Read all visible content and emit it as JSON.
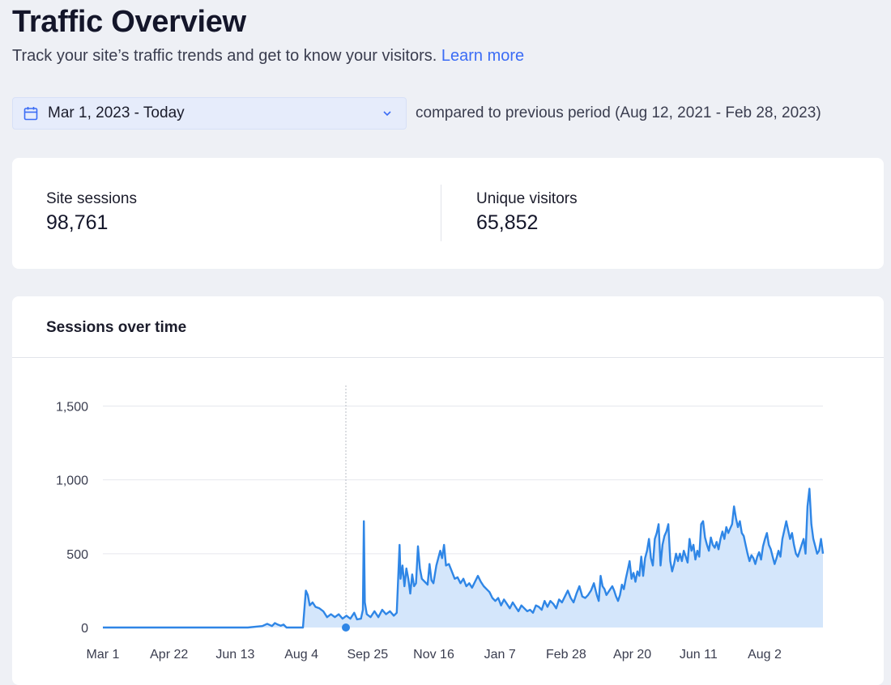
{
  "header": {
    "title": "Traffic Overview",
    "subtitle": "Track your site’s traffic trends and get to know your visitors.",
    "learn_more": "Learn more"
  },
  "filters": {
    "date_range": "Mar 1, 2023 - Today",
    "compare_text": "compared to previous period (Aug 12, 2021 - Feb 28, 2023)"
  },
  "stats": [
    {
      "label": "Site sessions",
      "value": "98,761"
    },
    {
      "label": "Unique visitors",
      "value": "65,852"
    }
  ],
  "chart_card": {
    "title": "Sessions over time"
  },
  "colors": {
    "accent": "#2f86e6",
    "fill": "#d4e6fb",
    "link": "#3b6cf5"
  },
  "chart_data": {
    "type": "area",
    "title": "",
    "xlabel": "",
    "ylabel": "",
    "ylim": [
      0,
      1640
    ],
    "yticks": [
      0,
      500,
      1000,
      1500
    ],
    "ytick_labels": [
      "0",
      "500",
      "1,000",
      "1,500"
    ],
    "xtick_labels": [
      "Mar 1",
      "Apr 22",
      "Jun 13",
      "Aug 4",
      "Sep 25",
      "Nov 16",
      "Jan 7",
      "Feb 28",
      "Apr 20",
      "Jun 11",
      "Aug 2"
    ],
    "xtick_days": [
      0,
      52,
      104,
      156,
      208,
      260,
      312,
      364,
      416,
      468,
      520
    ],
    "x_end_day": 566,
    "grid": true,
    "legend": "none",
    "highlight_point": {
      "day": 190,
      "value": 0
    },
    "series": [
      {
        "points": [
          [
            0,
            0
          ],
          [
            150,
            0
          ],
          [
            165,
            10
          ],
          [
            170,
            25
          ],
          [
            175,
            10
          ],
          [
            178,
            30
          ],
          [
            181,
            20
          ],
          [
            184,
            12
          ],
          [
            187,
            20
          ],
          [
            190,
            0
          ],
          [
            207,
            0
          ],
          [
            210,
            250
          ],
          [
            212,
            220
          ],
          [
            214,
            150
          ],
          [
            217,
            170
          ],
          [
            220,
            140
          ],
          [
            224,
            130
          ],
          [
            228,
            110
          ],
          [
            232,
            70
          ],
          [
            236,
            90
          ],
          [
            240,
            70
          ],
          [
            244,
            90
          ],
          [
            248,
            60
          ],
          [
            252,
            80
          ],
          [
            256,
            60
          ],
          [
            260,
            100
          ],
          [
            263,
            55
          ],
          [
            267,
            60
          ],
          [
            269,
            120
          ],
          [
            270,
            720
          ],
          [
            271,
            170
          ],
          [
            273,
            90
          ],
          [
            277,
            70
          ],
          [
            281,
            110
          ],
          [
            285,
            70
          ],
          [
            289,
            120
          ],
          [
            293,
            90
          ],
          [
            297,
            110
          ],
          [
            301,
            80
          ],
          [
            304,
            100
          ],
          [
            307,
            560
          ],
          [
            308,
            330
          ],
          [
            310,
            420
          ],
          [
            312,
            280
          ],
          [
            314,
            400
          ],
          [
            316,
            330
          ],
          [
            318,
            230
          ],
          [
            320,
            360
          ],
          [
            322,
            280
          ],
          [
            324,
            300
          ],
          [
            326,
            550
          ],
          [
            328,
            400
          ],
          [
            330,
            330
          ],
          [
            333,
            310
          ],
          [
            336,
            290
          ],
          [
            338,
            430
          ],
          [
            340,
            320
          ],
          [
            342,
            300
          ],
          [
            345,
            420
          ],
          [
            347,
            470
          ],
          [
            349,
            520
          ],
          [
            351,
            470
          ],
          [
            353,
            560
          ],
          [
            355,
            420
          ],
          [
            358,
            430
          ],
          [
            361,
            380
          ],
          [
            364,
            330
          ],
          [
            367,
            340
          ],
          [
            370,
            300
          ],
          [
            373,
            330
          ],
          [
            376,
            280
          ],
          [
            379,
            300
          ],
          [
            382,
            270
          ],
          [
            385,
            310
          ],
          [
            388,
            350
          ],
          [
            391,
            310
          ],
          [
            394,
            280
          ],
          [
            397,
            260
          ],
          [
            400,
            240
          ],
          [
            403,
            200
          ],
          [
            406,
            180
          ],
          [
            409,
            200
          ],
          [
            412,
            150
          ],
          [
            415,
            190
          ],
          [
            418,
            160
          ],
          [
            421,
            130
          ],
          [
            424,
            170
          ],
          [
            427,
            140
          ],
          [
            430,
            110
          ],
          [
            433,
            150
          ],
          [
            436,
            130
          ],
          [
            439,
            110
          ],
          [
            442,
            120
          ],
          [
            445,
            100
          ],
          [
            448,
            150
          ],
          [
            451,
            140
          ],
          [
            454,
            120
          ],
          [
            457,
            180
          ],
          [
            460,
            140
          ],
          [
            463,
            180
          ],
          [
            466,
            160
          ],
          [
            469,
            130
          ],
          [
            472,
            190
          ],
          [
            475,
            170
          ],
          [
            478,
            210
          ],
          [
            481,
            250
          ],
          [
            484,
            200
          ],
          [
            487,
            170
          ],
          [
            490,
            230
          ],
          [
            493,
            280
          ],
          [
            496,
            210
          ],
          [
            499,
            200
          ],
          [
            502,
            220
          ],
          [
            505,
            250
          ],
          [
            508,
            300
          ],
          [
            511,
            220
          ],
          [
            513,
            180
          ],
          [
            515,
            350
          ],
          [
            517,
            280
          ],
          [
            519,
            260
          ],
          [
            521,
            220
          ],
          [
            523,
            240
          ],
          [
            525,
            260
          ],
          [
            527,
            280
          ],
          [
            529,
            250
          ],
          [
            531,
            210
          ],
          [
            533,
            180
          ],
          [
            535,
            220
          ],
          [
            537,
            290
          ],
          [
            539,
            260
          ],
          [
            541,
            330
          ],
          [
            543,
            390
          ],
          [
            545,
            450
          ],
          [
            547,
            330
          ],
          [
            549,
            370
          ],
          [
            551,
            310
          ],
          [
            553,
            380
          ],
          [
            555,
            350
          ],
          [
            557,
            480
          ],
          [
            559,
            350
          ],
          [
            561,
            470
          ],
          [
            563,
            520
          ],
          [
            565,
            600
          ],
          [
            567,
            470
          ],
          [
            569,
            420
          ],
          [
            571,
            600
          ],
          [
            573,
            640
          ],
          [
            575,
            700
          ],
          [
            577,
            420
          ],
          [
            579,
            560
          ],
          [
            581,
            620
          ],
          [
            583,
            650
          ],
          [
            585,
            700
          ],
          [
            587,
            450
          ],
          [
            589,
            380
          ],
          [
            591,
            430
          ],
          [
            593,
            500
          ],
          [
            595,
            450
          ],
          [
            597,
            500
          ],
          [
            599,
            450
          ],
          [
            601,
            520
          ],
          [
            603,
            480
          ],
          [
            605,
            440
          ],
          [
            607,
            600
          ],
          [
            609,
            520
          ],
          [
            611,
            560
          ],
          [
            613,
            460
          ],
          [
            615,
            520
          ],
          [
            617,
            480
          ],
          [
            619,
            700
          ],
          [
            621,
            720
          ],
          [
            623,
            610
          ],
          [
            625,
            560
          ],
          [
            627,
            520
          ],
          [
            629,
            610
          ],
          [
            631,
            560
          ],
          [
            633,
            540
          ],
          [
            635,
            580
          ],
          [
            637,
            530
          ],
          [
            639,
            600
          ],
          [
            641,
            650
          ],
          [
            643,
            600
          ],
          [
            645,
            680
          ],
          [
            647,
            640
          ],
          [
            649,
            670
          ],
          [
            651,
            700
          ],
          [
            653,
            820
          ],
          [
            655,
            740
          ],
          [
            657,
            680
          ],
          [
            659,
            720
          ],
          [
            661,
            640
          ],
          [
            663,
            620
          ],
          [
            665,
            560
          ],
          [
            667,
            500
          ],
          [
            669,
            450
          ],
          [
            671,
            490
          ],
          [
            673,
            470
          ],
          [
            675,
            430
          ],
          [
            677,
            480
          ],
          [
            679,
            510
          ],
          [
            681,
            460
          ],
          [
            683,
            550
          ],
          [
            685,
            600
          ],
          [
            687,
            640
          ],
          [
            689,
            560
          ],
          [
            691,
            530
          ],
          [
            693,
            480
          ],
          [
            695,
            430
          ],
          [
            697,
            470
          ],
          [
            699,
            520
          ],
          [
            701,
            480
          ],
          [
            703,
            600
          ],
          [
            705,
            660
          ],
          [
            707,
            720
          ],
          [
            709,
            660
          ],
          [
            711,
            600
          ],
          [
            713,
            640
          ],
          [
            715,
            560
          ],
          [
            717,
            500
          ],
          [
            719,
            480
          ],
          [
            721,
            520
          ],
          [
            723,
            560
          ],
          [
            725,
            600
          ],
          [
            727,
            500
          ],
          [
            729,
            820
          ],
          [
            731,
            940
          ],
          [
            733,
            700
          ],
          [
            735,
            600
          ],
          [
            737,
            550
          ],
          [
            739,
            500
          ],
          [
            741,
            520
          ],
          [
            743,
            600
          ],
          [
            745,
            500
          ]
        ]
      }
    ]
  }
}
